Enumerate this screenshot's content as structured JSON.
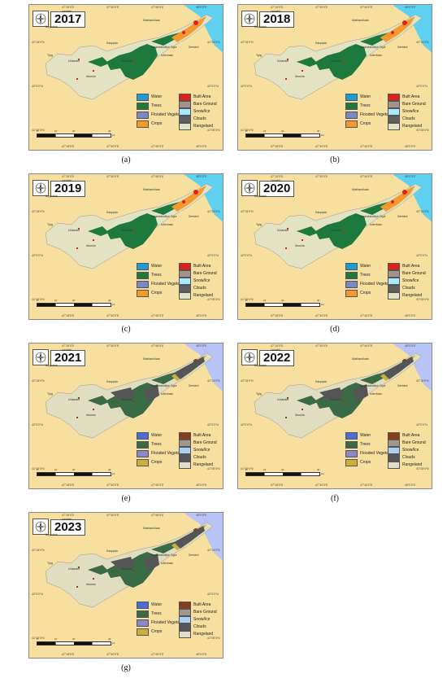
{
  "panels": [
    {
      "id": "a",
      "year": "2017",
      "caption": "(a)",
      "palette": "old"
    },
    {
      "id": "b",
      "year": "2018",
      "caption": "(b)",
      "palette": "old"
    },
    {
      "id": "c",
      "year": "2019",
      "caption": "(c)",
      "palette": "old"
    },
    {
      "id": "d",
      "year": "2020",
      "caption": "(d)",
      "palette": "old"
    },
    {
      "id": "e",
      "year": "2021",
      "caption": "(e)",
      "palette": "new"
    },
    {
      "id": "f",
      "year": "2022",
      "caption": "(f)",
      "palette": "new"
    },
    {
      "id": "g",
      "year": "2023",
      "caption": "(g)",
      "palette": "new"
    }
  ],
  "legend_left": [
    "Water",
    "Trees",
    "Flooded Vegetation",
    "Crops"
  ],
  "legend_right": [
    "Built Area",
    "Bare Ground",
    "Snow/Ice",
    "Clouds",
    "Rangeland"
  ],
  "palettes": {
    "old": {
      "Water": "#1e9bd6",
      "Trees": "#1e7a3c",
      "Flooded Vegetation": "#7b86c9",
      "Crops": "#f29a2e",
      "Built Area": "#e0201b",
      "Bare Ground": "#a6928c",
      "Snow/Ice": "#a8ebff",
      "Clouds": "#5f5f5f",
      "Rangeland": "#e3e2c3",
      "Sea": "#5fd0f0"
    },
    "new": {
      "Water": "#4a6cd4",
      "Trees": "#3a6b46",
      "Flooded Vegetation": "#8c86cc",
      "Crops": "#c9b03a",
      "Built Area": "#8a3b17",
      "Bare Ground": "#a6958a",
      "Snow/Ice": "#a9d0f0",
      "Clouds": "#555555",
      "Rangeland": "#e0ddc0",
      "Sea": "#b7c4f5"
    }
  },
  "coords_top": [
    "47°15'0\"E",
    "47°30'0\"E",
    "47°45'0\"E",
    "48°0'0\"E"
  ],
  "coords_side": [
    "42°15'0\"N",
    "42°0'0\"N",
    "41°45'0\"N"
  ],
  "places": [
    "Levashi",
    "Buynaksk",
    "Kaspiysk",
    "Makhachkala",
    "Izberbash",
    "Dagestanskiye Ogni",
    "Derbent",
    "Khuchni",
    "Tpig",
    "Akusha",
    "Urkarakh"
  ],
  "scale_ticks": [
    "0",
    "10",
    "20",
    "40"
  ],
  "scale_unit": "km"
}
